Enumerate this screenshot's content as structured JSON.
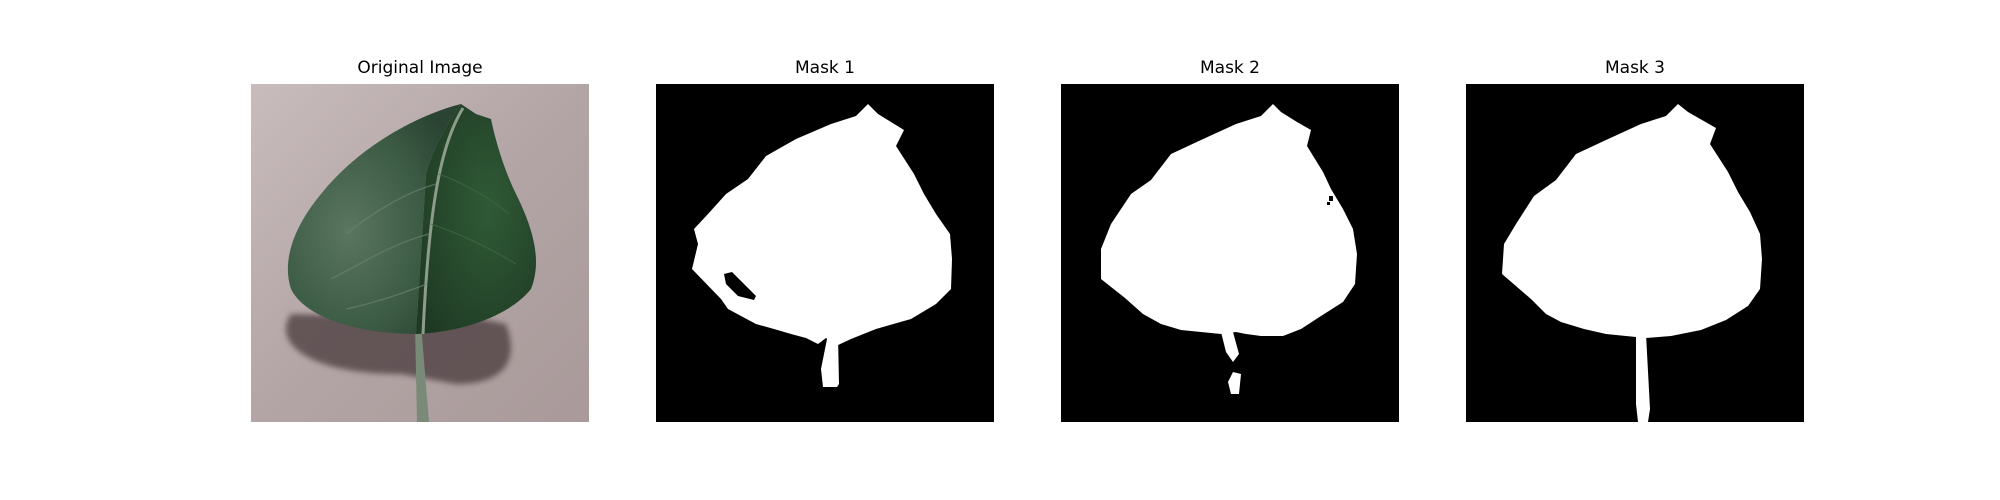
{
  "figure": {
    "panels": [
      {
        "title": "Original Image",
        "kind": "photo"
      },
      {
        "title": "Mask 1",
        "kind": "mask"
      },
      {
        "title": "Mask 2",
        "kind": "mask"
      },
      {
        "title": "Mask 3",
        "kind": "mask"
      }
    ]
  },
  "colors": {
    "mask_background": "#000000",
    "mask_foreground": "#ffffff",
    "leaf_dark": "#2c4a33",
    "leaf_mid": "#3f6046",
    "surface": "#b8aaa9"
  }
}
